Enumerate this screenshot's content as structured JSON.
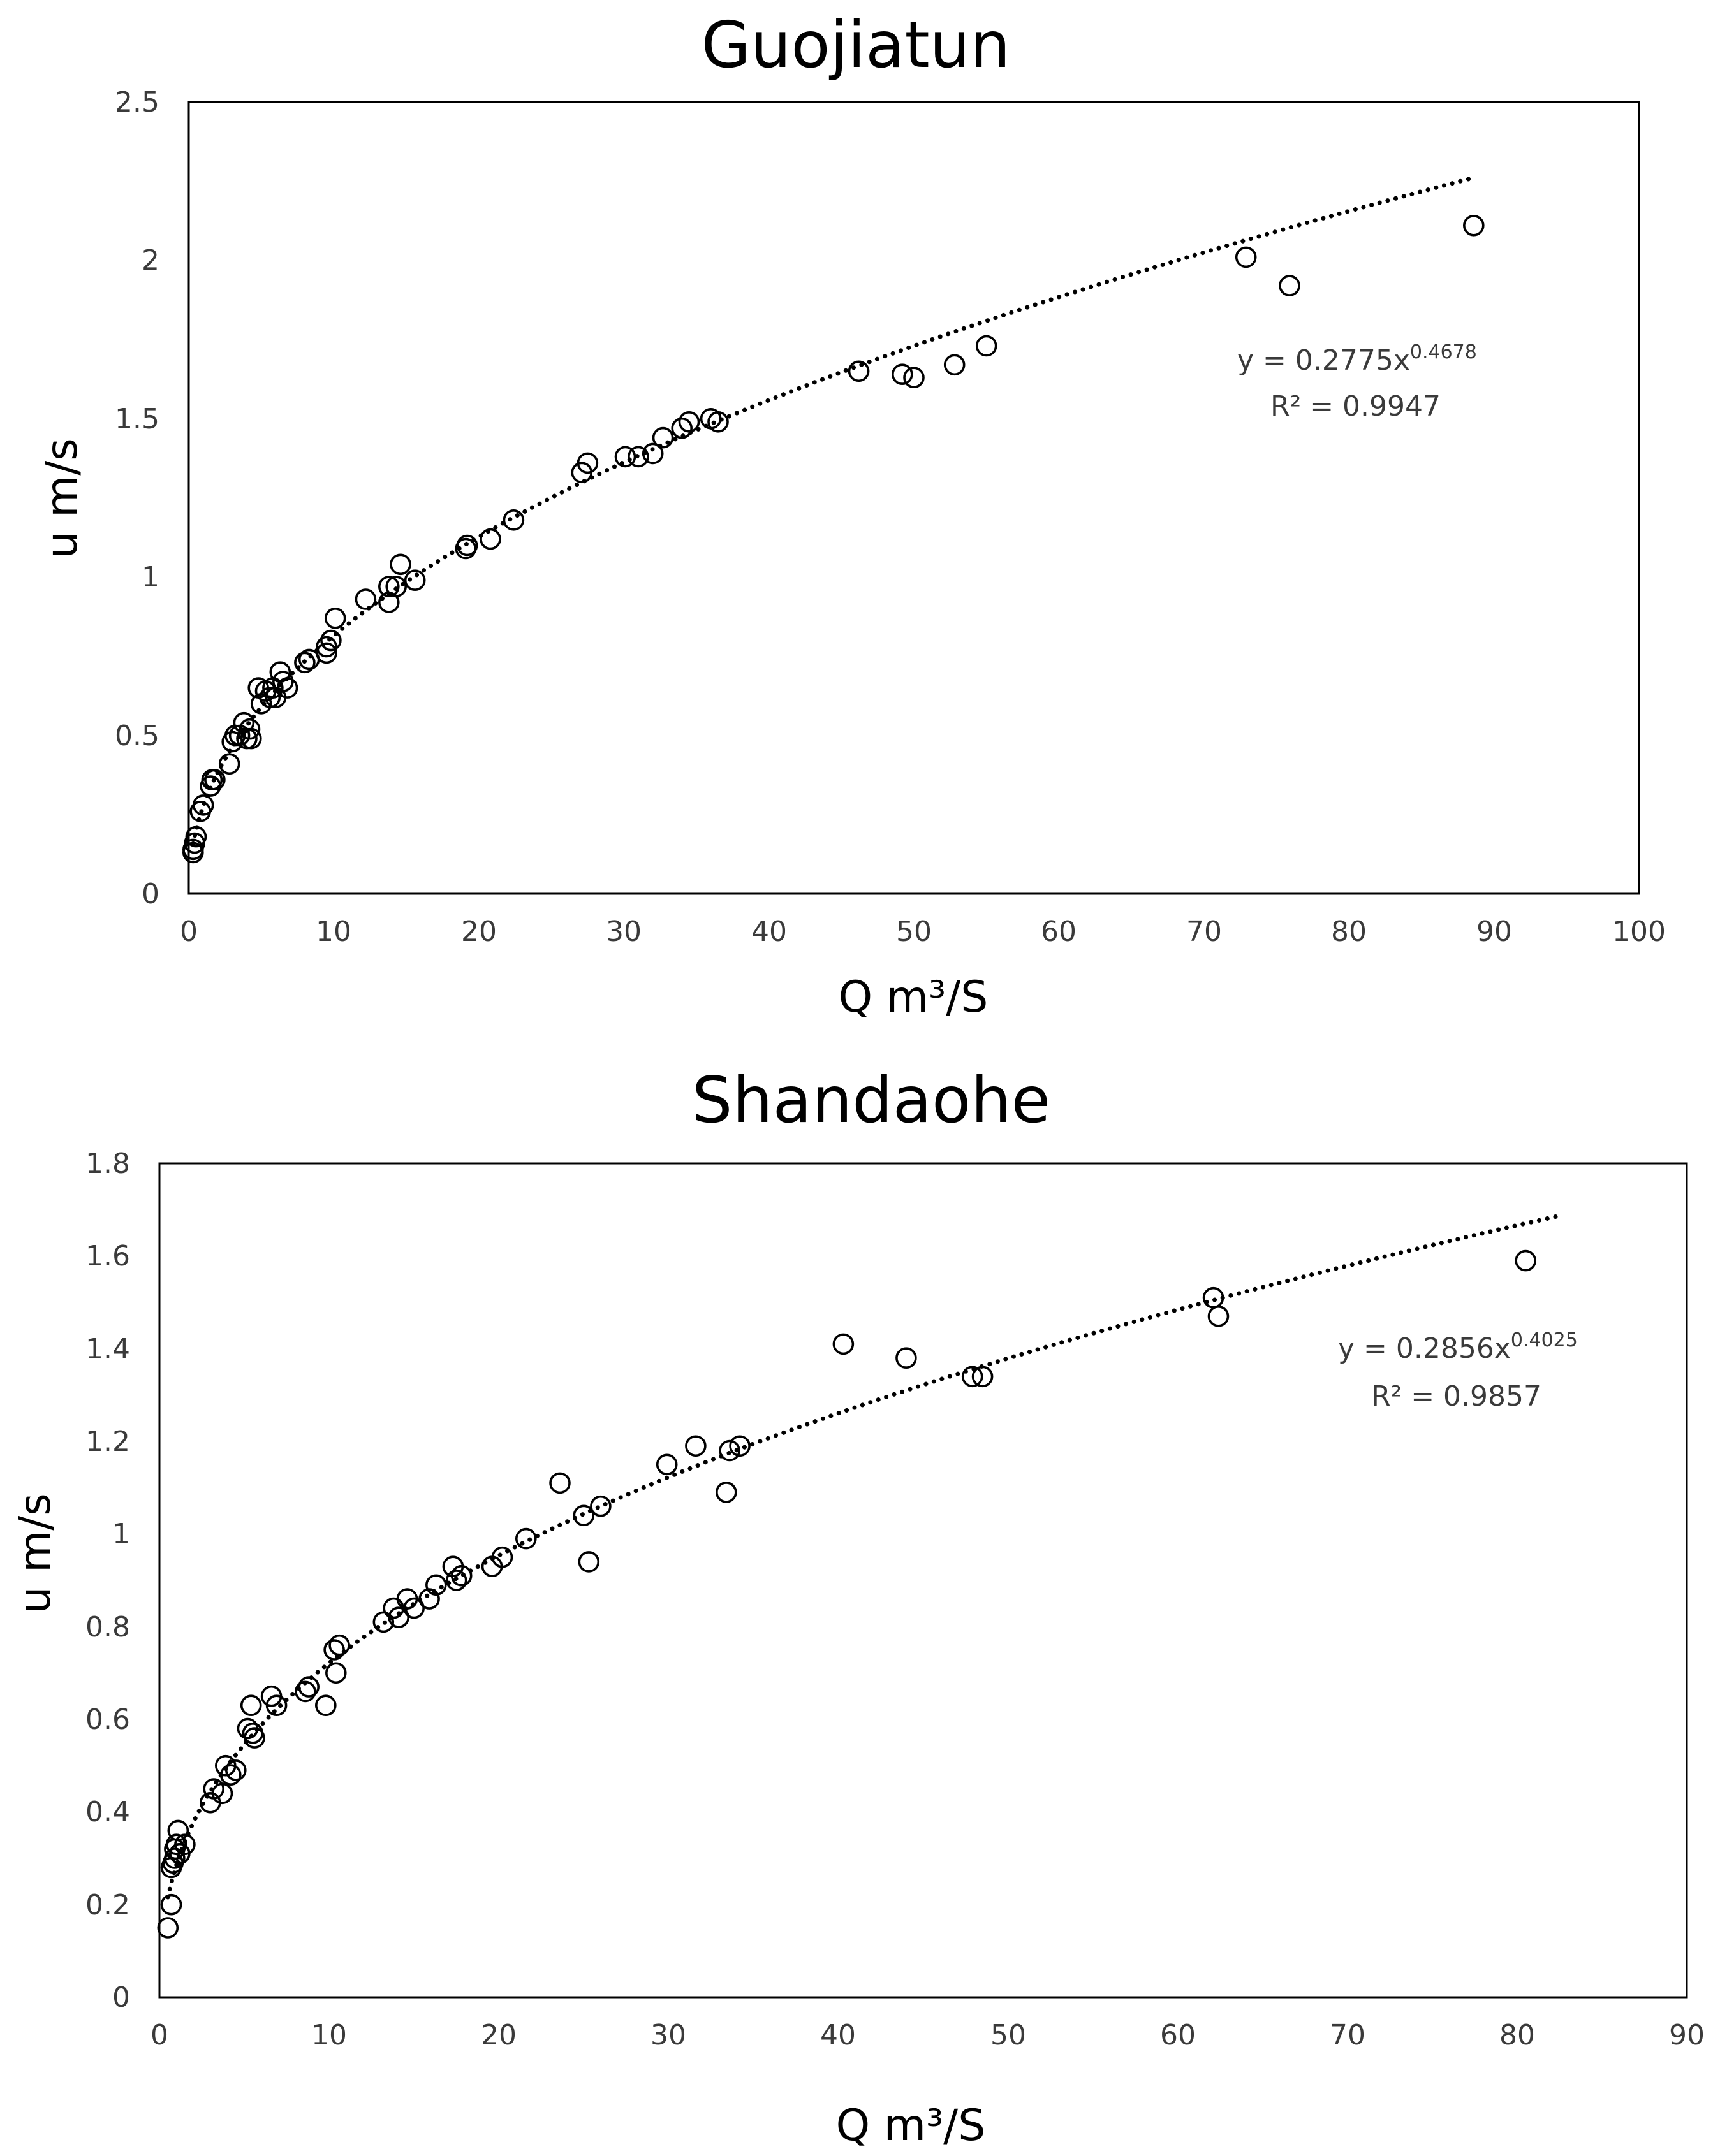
{
  "chart_data": [
    {
      "type": "scatter",
      "title": "Guojiatun",
      "xlabel": "Q m³/S",
      "ylabel": "u m/s",
      "xlim": [
        0,
        100
      ],
      "ylim": [
        0,
        2.5
      ],
      "xticks": [
        "0",
        "10",
        "20",
        "30",
        "40",
        "50",
        "60",
        "70",
        "80",
        "90",
        "100"
      ],
      "yticks": [
        "0",
        "0.5",
        "1",
        "1.5",
        "2",
        "2.5"
      ],
      "grid": false,
      "legend": "none",
      "trendline": {
        "type": "power",
        "coefficient": 0.2775,
        "exponent": 0.4678,
        "x_range": [
          0.3,
          88.5
        ],
        "equation": "y = 0.2775x",
        "equation_exponent": "0.4678",
        "r2": "R² = 0.9947"
      },
      "series": [
        {
          "name": "Guojiatun",
          "points": [
            [
              0.3,
              0.13
            ],
            [
              0.3,
              0.14
            ],
            [
              0.4,
              0.16
            ],
            [
              0.5,
              0.18
            ],
            [
              0.8,
              0.26
            ],
            [
              1.0,
              0.28
            ],
            [
              1.5,
              0.34
            ],
            [
              1.6,
              0.36
            ],
            [
              1.8,
              0.36
            ],
            [
              2.8,
              0.41
            ],
            [
              3.0,
              0.48
            ],
            [
              3.2,
              0.5
            ],
            [
              3.5,
              0.5
            ],
            [
              3.8,
              0.54
            ],
            [
              4.0,
              0.49
            ],
            [
              4.2,
              0.52
            ],
            [
              4.3,
              0.49
            ],
            [
              4.8,
              0.65
            ],
            [
              5.0,
              0.6
            ],
            [
              5.3,
              0.64
            ],
            [
              5.6,
              0.62
            ],
            [
              5.8,
              0.65
            ],
            [
              6.0,
              0.62
            ],
            [
              6.3,
              0.7
            ],
            [
              6.5,
              0.67
            ],
            [
              6.8,
              0.65
            ],
            [
              8.0,
              0.73
            ],
            [
              8.3,
              0.74
            ],
            [
              9.5,
              0.76
            ],
            [
              9.5,
              0.78
            ],
            [
              9.8,
              0.8
            ],
            [
              10.1,
              0.87
            ],
            [
              12.2,
              0.93
            ],
            [
              13.8,
              0.92
            ],
            [
              13.8,
              0.97
            ],
            [
              14.3,
              0.97
            ],
            [
              14.6,
              1.04
            ],
            [
              15.6,
              0.99
            ],
            [
              19.1,
              1.09
            ],
            [
              19.2,
              1.1
            ],
            [
              20.8,
              1.12
            ],
            [
              22.4,
              1.18
            ],
            [
              27.1,
              1.33
            ],
            [
              27.5,
              1.36
            ],
            [
              30.1,
              1.38
            ],
            [
              31.0,
              1.38
            ],
            [
              32.0,
              1.39
            ],
            [
              32.7,
              1.44
            ],
            [
              34.0,
              1.47
            ],
            [
              34.5,
              1.49
            ],
            [
              36.0,
              1.5
            ],
            [
              36.5,
              1.49
            ],
            [
              46.2,
              1.65
            ],
            [
              49.2,
              1.64
            ],
            [
              50.0,
              1.63
            ],
            [
              52.8,
              1.67
            ],
            [
              55.0,
              1.73
            ],
            [
              72.9,
              2.01
            ],
            [
              75.9,
              1.92
            ],
            [
              88.6,
              2.11
            ]
          ]
        }
      ]
    },
    {
      "type": "scatter",
      "title": "Shandaohe",
      "xlabel": "Q m³/S",
      "ylabel": "u m/s",
      "xlim": [
        0,
        90
      ],
      "ylim": [
        0,
        1.8
      ],
      "xticks": [
        "0",
        "10",
        "20",
        "30",
        "40",
        "50",
        "60",
        "70",
        "80",
        "90"
      ],
      "yticks": [
        "0",
        "0.2",
        "0.4",
        "0.6",
        "0.8",
        "1",
        "1.2",
        "1.4",
        "1.6",
        "1.8"
      ],
      "grid": false,
      "legend": "none",
      "trendline": {
        "type": "power",
        "coefficient": 0.2856,
        "exponent": 0.4025,
        "x_range": [
          0.5,
          82.5
        ],
        "equation": "y = 0.2856x",
        "equation_exponent": "0.4025",
        "r2": "R² = 0.9857"
      },
      "series": [
        {
          "name": "Shandaohe",
          "points": [
            [
              0.5,
              0.15
            ],
            [
              0.7,
              0.2
            ],
            [
              0.7,
              0.28
            ],
            [
              0.8,
              0.29
            ],
            [
              0.9,
              0.3
            ],
            [
              0.9,
              0.32
            ],
            [
              1.0,
              0.33
            ],
            [
              1.1,
              0.36
            ],
            [
              1.2,
              0.31
            ],
            [
              1.5,
              0.33
            ],
            [
              3.0,
              0.42
            ],
            [
              3.2,
              0.45
            ],
            [
              3.7,
              0.44
            ],
            [
              3.9,
              0.5
            ],
            [
              4.2,
              0.48
            ],
            [
              4.5,
              0.49
            ],
            [
              5.2,
              0.58
            ],
            [
              5.4,
              0.63
            ],
            [
              5.5,
              0.57
            ],
            [
              5.6,
              0.56
            ],
            [
              6.6,
              0.65
            ],
            [
              6.9,
              0.63
            ],
            [
              8.6,
              0.66
            ],
            [
              8.8,
              0.67
            ],
            [
              9.8,
              0.63
            ],
            [
              10.3,
              0.75
            ],
            [
              10.4,
              0.7
            ],
            [
              10.6,
              0.76
            ],
            [
              13.2,
              0.81
            ],
            [
              13.8,
              0.84
            ],
            [
              14.1,
              0.82
            ],
            [
              14.6,
              0.86
            ],
            [
              15.0,
              0.84
            ],
            [
              15.9,
              0.86
            ],
            [
              16.3,
              0.89
            ],
            [
              17.3,
              0.93
            ],
            [
              17.5,
              0.9
            ],
            [
              17.8,
              0.91
            ],
            [
              19.6,
              0.93
            ],
            [
              20.2,
              0.95
            ],
            [
              21.6,
              0.99
            ],
            [
              23.6,
              1.11
            ],
            [
              25.0,
              1.04
            ],
            [
              25.3,
              0.94
            ],
            [
              26.0,
              1.06
            ],
            [
              29.9,
              1.15
            ],
            [
              31.6,
              1.19
            ],
            [
              33.4,
              1.09
            ],
            [
              33.6,
              1.18
            ],
            [
              34.2,
              1.19
            ],
            [
              40.3,
              1.41
            ],
            [
              44.0,
              1.38
            ],
            [
              47.9,
              1.34
            ],
            [
              48.5,
              1.34
            ],
            [
              62.1,
              1.51
            ],
            [
              62.4,
              1.47
            ],
            [
              80.5,
              1.59
            ]
          ]
        }
      ]
    }
  ]
}
